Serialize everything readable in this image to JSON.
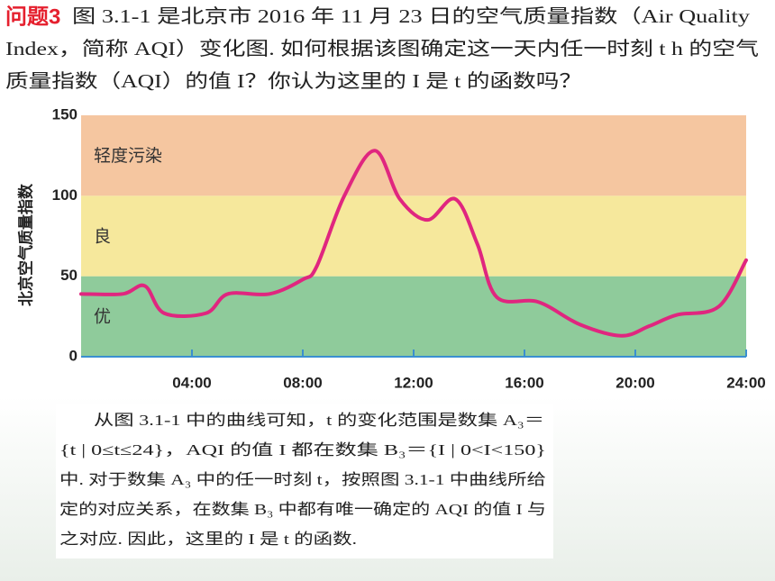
{
  "header": {
    "label": "问题3",
    "lines": [
      "图 3.1-1 是北京市 2016 年 11 月 23 日的空气质量指数（Air Quality",
      "Index，简称 AQI）变化图. 如何根据该图确定这一天内任一时刻 t h 的空气",
      "质量指数（AQI）的值 I？你认为这里的 I 是 t 的函数吗？"
    ]
  },
  "chart_data": {
    "type": "line",
    "ylabel": "北京空气质量指数",
    "x": [
      0,
      1.5,
      2.3,
      3,
      4.5,
      5.3,
      6.8,
      8,
      8.5,
      9.5,
      10.6,
      11.5,
      12.5,
      13.5,
      14.3,
      15,
      16.5,
      18,
      19.5,
      20.5,
      21.5,
      23,
      24
    ],
    "series": [
      {
        "name": "AQI",
        "color": "#e0267f",
        "values": [
          39,
          39,
          44,
          27,
          27,
          39,
          39,
          48,
          56,
          100,
          128,
          98,
          85,
          98,
          70,
          37,
          34,
          20,
          13,
          19,
          26,
          31,
          60
        ]
      }
    ],
    "xlim": [
      0,
      24
    ],
    "xticks": [
      {
        "value": 4,
        "label": "04:00"
      },
      {
        "value": 8,
        "label": "08:00"
      },
      {
        "value": 12,
        "label": "12:00"
      },
      {
        "value": 16,
        "label": "16:00"
      },
      {
        "value": 20,
        "label": "20:00"
      },
      {
        "value": 24,
        "label": "24:00"
      }
    ],
    "ylim": [
      0,
      150
    ],
    "yticks": [
      0,
      50,
      100,
      150
    ],
    "bands": [
      {
        "label": "优",
        "from": 0,
        "to": 50,
        "color": "#8fcb9b"
      },
      {
        "label": "良",
        "from": 50,
        "to": 100,
        "color": "#f6e89c"
      },
      {
        "label": "轻度污染",
        "from": 100,
        "to": 150,
        "color": "#f5c6a0"
      }
    ]
  },
  "body": {
    "lines": [
      "从图 3.1-1 中的曲线可知，t 的变化范围是数集 A₃＝",
      "{t | 0≤t≤24}，AQI 的值 I 都在数集 B₃＝{I | 0<I<150}",
      "中. 对于数集 A₃ 中的任一时刻 t，按照图 3.1-1 中曲线所给",
      "定的对应关系，在数集 B₃ 中都有唯一确定的 AQI 的值 I 与",
      "之对应. 因此，这里的 I 是 t 的函数."
    ]
  }
}
